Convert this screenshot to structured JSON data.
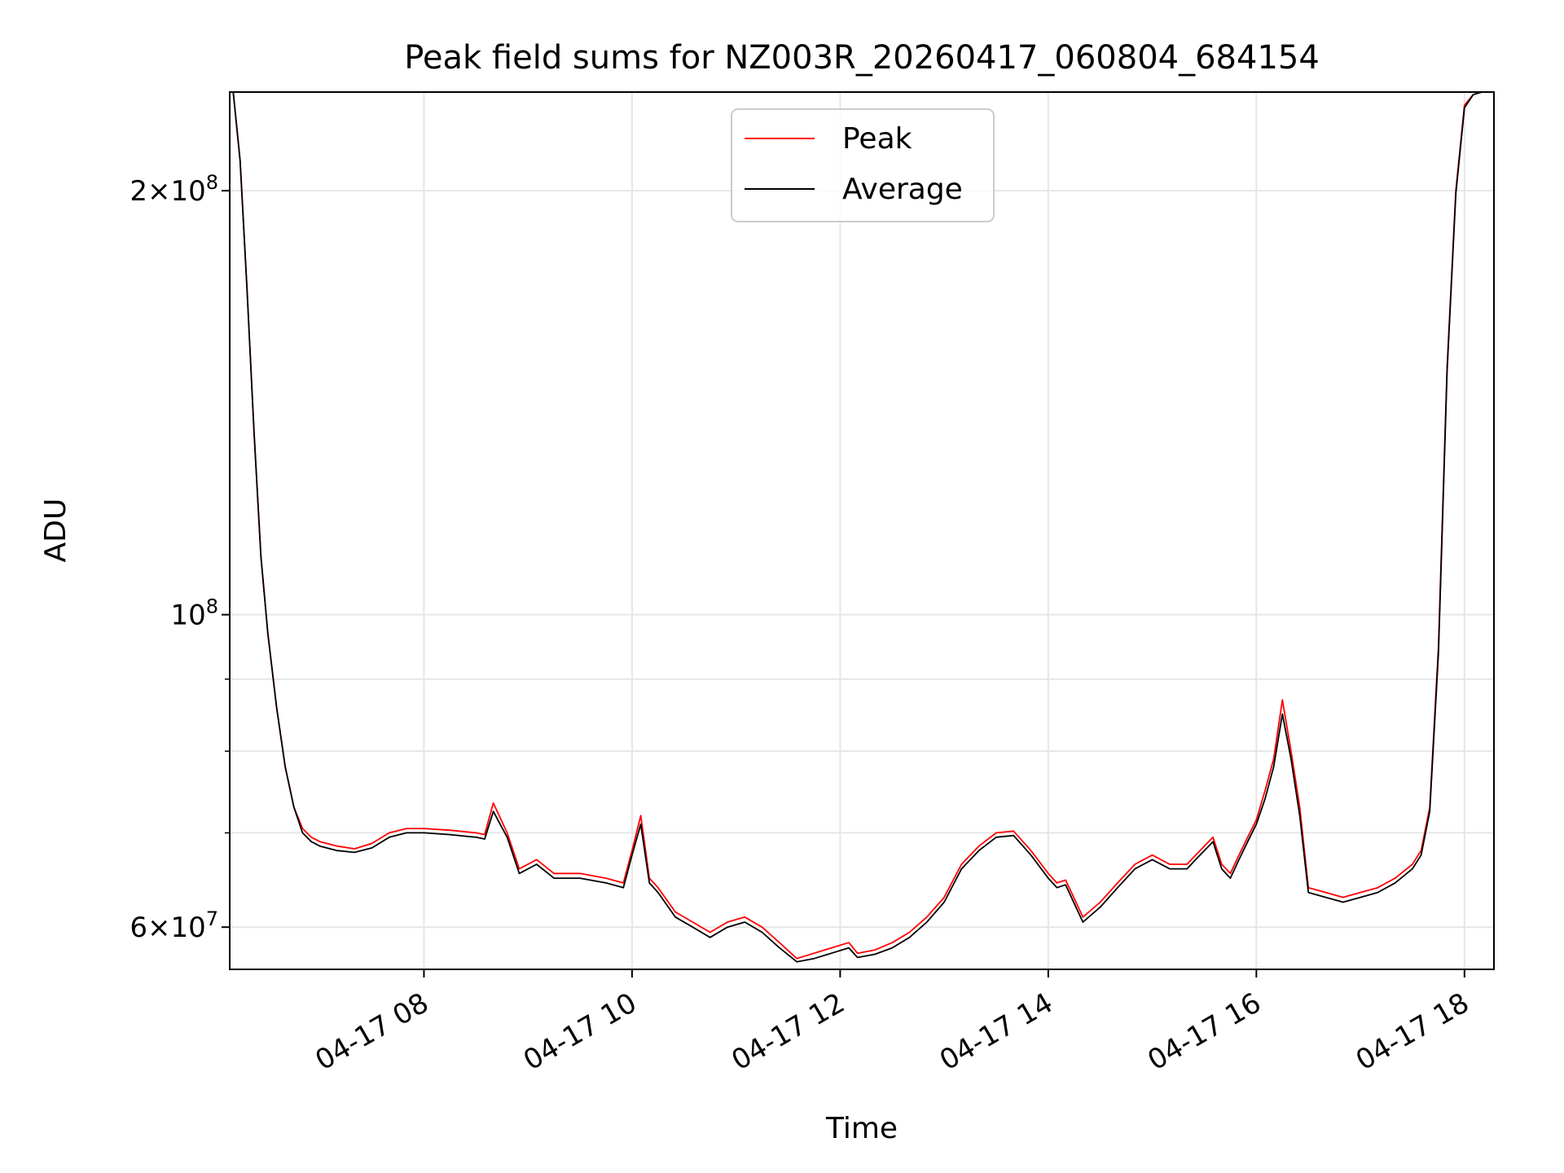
{
  "chart_data": {
    "type": "line",
    "title": "Peak field sums for NZ003R_20260417_060804_684154",
    "xlabel": "Time",
    "ylabel": "ADU",
    "yscale": "log",
    "grid": true,
    "legend_placement": "upper center",
    "xlim": [
      "2026-04-17 06:08",
      "2026-04-17 18:17"
    ],
    "ylim": [
      56000000,
      235000000
    ],
    "x_ticks": [
      "04-17 08",
      "04-17 10",
      "04-17 12",
      "04-17 14",
      "04-17 16",
      "04-17 18"
    ],
    "y_tick_labels": [
      {
        "value": 200000000,
        "base": "2×10",
        "exp": "8"
      },
      {
        "value": 100000000,
        "base": "10",
        "exp": "8"
      },
      {
        "value": 60000000,
        "base": "6×10",
        "exp": "7"
      }
    ],
    "x": [
      "2026-04-17 06:10",
      "2026-04-17 06:14",
      "2026-04-17 06:18",
      "2026-04-17 06:22",
      "2026-04-17 06:26",
      "2026-04-17 06:30",
      "2026-04-17 06:35",
      "2026-04-17 06:40",
      "2026-04-17 06:45",
      "2026-04-17 06:50",
      "2026-04-17 06:55",
      "2026-04-17 07:00",
      "2026-04-17 07:10",
      "2026-04-17 07:20",
      "2026-04-17 07:30",
      "2026-04-17 07:40",
      "2026-04-17 07:50",
      "2026-04-17 08:00",
      "2026-04-17 08:15",
      "2026-04-17 08:30",
      "2026-04-17 08:35",
      "2026-04-17 08:40",
      "2026-04-17 08:48",
      "2026-04-17 08:55",
      "2026-04-17 09:05",
      "2026-04-17 09:15",
      "2026-04-17 09:30",
      "2026-04-17 09:45",
      "2026-04-17 09:55",
      "2026-04-17 10:00",
      "2026-04-17 10:05",
      "2026-04-17 10:10",
      "2026-04-17 10:15",
      "2026-04-17 10:25",
      "2026-04-17 10:35",
      "2026-04-17 10:45",
      "2026-04-17 10:55",
      "2026-04-17 11:05",
      "2026-04-17 11:15",
      "2026-04-17 11:25",
      "2026-04-17 11:35",
      "2026-04-17 11:45",
      "2026-04-17 11:55",
      "2026-04-17 12:05",
      "2026-04-17 12:10",
      "2026-04-17 12:20",
      "2026-04-17 12:30",
      "2026-04-17 12:40",
      "2026-04-17 12:50",
      "2026-04-17 13:00",
      "2026-04-17 13:10",
      "2026-04-17 13:20",
      "2026-04-17 13:30",
      "2026-04-17 13:40",
      "2026-04-17 13:50",
      "2026-04-17 14:00",
      "2026-04-17 14:05",
      "2026-04-17 14:10",
      "2026-04-17 14:20",
      "2026-04-17 14:30",
      "2026-04-17 14:40",
      "2026-04-17 14:50",
      "2026-04-17 15:00",
      "2026-04-17 15:10",
      "2026-04-17 15:20",
      "2026-04-17 15:25",
      "2026-04-17 15:30",
      "2026-04-17 15:35",
      "2026-04-17 15:40",
      "2026-04-17 15:45",
      "2026-04-17 15:50",
      "2026-04-17 15:55",
      "2026-04-17 16:00",
      "2026-04-17 16:05",
      "2026-04-17 16:10",
      "2026-04-17 16:15",
      "2026-04-17 16:20",
      "2026-04-17 16:25",
      "2026-04-17 16:30",
      "2026-04-17 16:40",
      "2026-04-17 16:50",
      "2026-04-17 17:00",
      "2026-04-17 17:10",
      "2026-04-17 17:20",
      "2026-04-17 17:30",
      "2026-04-17 17:35",
      "2026-04-17 17:40",
      "2026-04-17 17:45",
      "2026-04-17 17:50",
      "2026-04-17 17:55",
      "2026-04-17 18:00",
      "2026-04-17 18:05",
      "2026-04-17 18:10",
      "2026-04-17 18:15"
    ],
    "series": [
      {
        "name": "Peak",
        "color": "#ff0000",
        "values": [
          235000000,
          210000000,
          170000000,
          135000000,
          110000000,
          97000000,
          86000000,
          78000000,
          73000000,
          70500000,
          69500000,
          69000000,
          68500000,
          68200000,
          68800000,
          70000000,
          70500000,
          70500000,
          70300000,
          70000000,
          69800000,
          73500000,
          70000000,
          66000000,
          67000000,
          65500000,
          65500000,
          65000000,
          64500000,
          68000000,
          72000000,
          65000000,
          64000000,
          61500000,
          60500000,
          59500000,
          60500000,
          61000000,
          60000000,
          58500000,
          57000000,
          57500000,
          58000000,
          58500000,
          57500000,
          57800000,
          58500000,
          59500000,
          61000000,
          63000000,
          66500000,
          68500000,
          70000000,
          70200000,
          68000000,
          65500000,
          64500000,
          64800000,
          61000000,
          62500000,
          64500000,
          66500000,
          67500000,
          66500000,
          66500000,
          67500000,
          68500000,
          69500000,
          66500000,
          65500000,
          67500000,
          69500000,
          71500000,
          75000000,
          79000000,
          87000000,
          80000000,
          73000000,
          64000000,
          63500000,
          63000000,
          63500000,
          64000000,
          65000000,
          66500000,
          68000000,
          73000000,
          95000000,
          150000000,
          200000000,
          230000000,
          234000000,
          235000000,
          235000000
        ]
      },
      {
        "name": "Average",
        "color": "#000000",
        "values": [
          235000000,
          210000000,
          170000000,
          135000000,
          110000000,
          97000000,
          86000000,
          78000000,
          73000000,
          70000000,
          69000000,
          68500000,
          68000000,
          67800000,
          68300000,
          69500000,
          70000000,
          70000000,
          69800000,
          69500000,
          69300000,
          72500000,
          69500000,
          65500000,
          66500000,
          65000000,
          65000000,
          64500000,
          64000000,
          67500000,
          71000000,
          64500000,
          63500000,
          61000000,
          60000000,
          59000000,
          60000000,
          60500000,
          59500000,
          58000000,
          56700000,
          57000000,
          57500000,
          58000000,
          57100000,
          57400000,
          58000000,
          59000000,
          60500000,
          62500000,
          66000000,
          68000000,
          69500000,
          69700000,
          67500000,
          65000000,
          64000000,
          64300000,
          60500000,
          62000000,
          64000000,
          66000000,
          67000000,
          66000000,
          66000000,
          67000000,
          68000000,
          69000000,
          66000000,
          65000000,
          67000000,
          69000000,
          71000000,
          74000000,
          78000000,
          85000000,
          79000000,
          72000000,
          63500000,
          63000000,
          62500000,
          63000000,
          63500000,
          64500000,
          66000000,
          67500000,
          72500000,
          94000000,
          149000000,
          199000000,
          229000000,
          234000000,
          235000000,
          235000000
        ]
      }
    ]
  }
}
